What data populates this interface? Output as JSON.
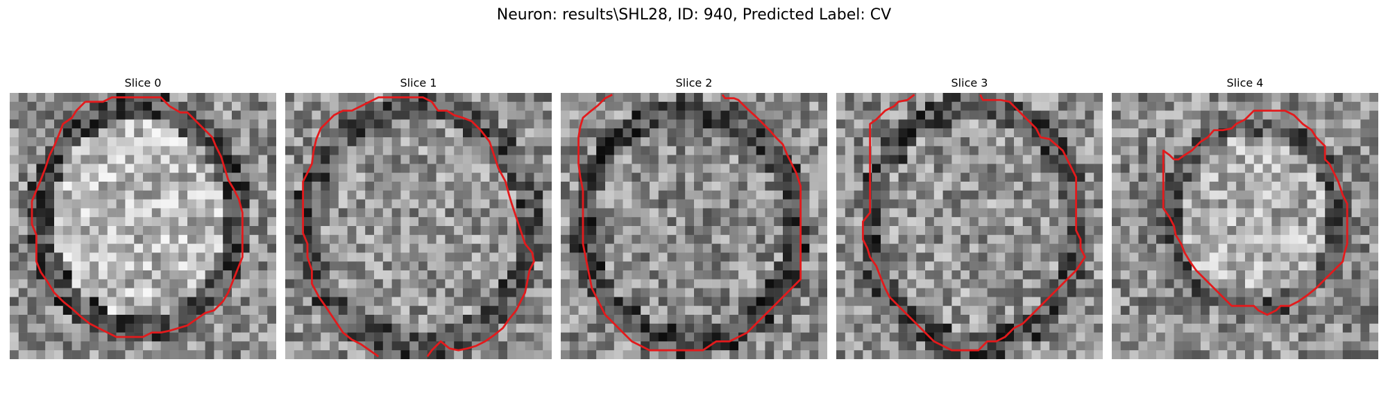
{
  "figure": {
    "title": "Neuron: results\\SHL28, ID: 940, Predicted Label: CV"
  },
  "panels": [
    {
      "title": "Slice 0"
    },
    {
      "title": "Slice 1"
    },
    {
      "title": "Slice 2"
    },
    {
      "title": "Slice 3"
    },
    {
      "title": "Slice 4"
    }
  ],
  "colors": {
    "contour": "#e31a1c",
    "background": "#ffffff"
  }
}
